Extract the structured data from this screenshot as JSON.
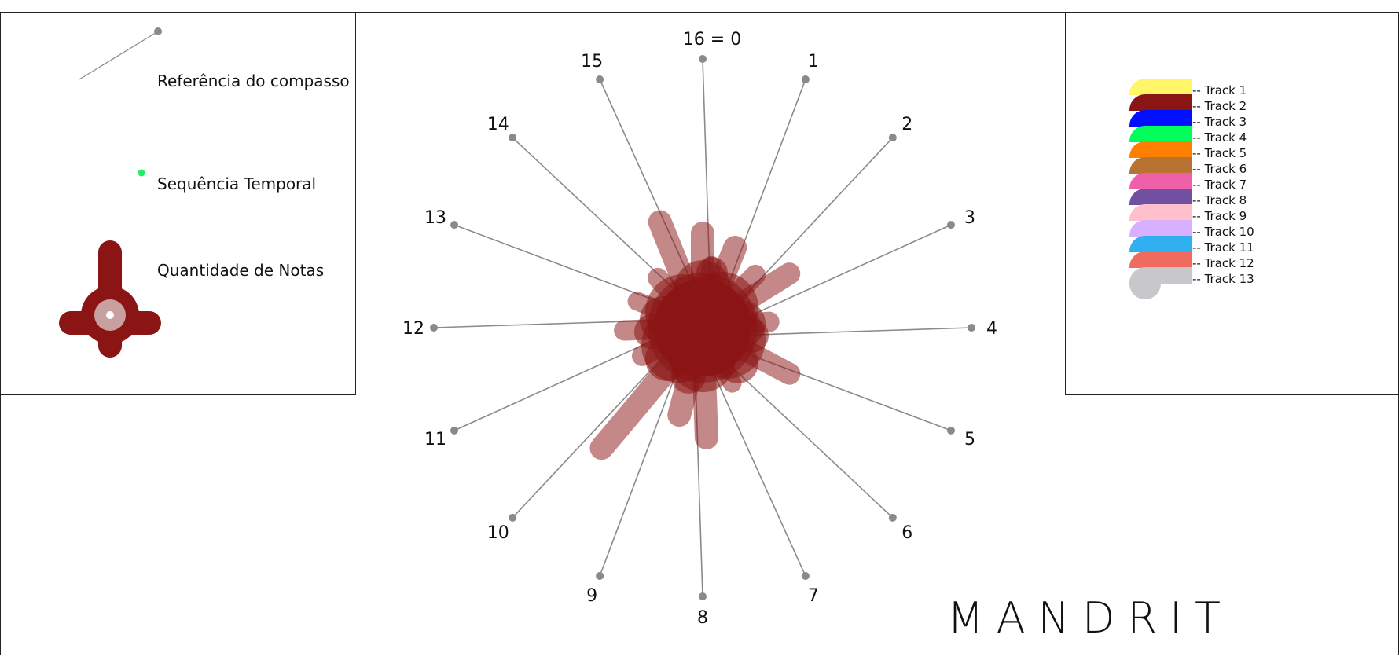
{
  "legend": {
    "compass_reference_label": "Referência do compasso",
    "temporal_sequence_label": "Sequência Temporal",
    "note_quantity_label": "Quantidade de Notas",
    "temporal_dot_color": "#22ee66",
    "reference_line_color": "#8a8a8a"
  },
  "brand": {
    "name": "MANDRIT"
  },
  "radial": {
    "beat_labels": [
      "16 = 0",
      "1",
      "2",
      "3",
      "4",
      "5",
      "6",
      "7",
      "8",
      "9",
      "10",
      "11",
      "12",
      "13",
      "14",
      "15"
    ],
    "spoke_color": "#8a8a8a",
    "note_color": "#8b1414"
  },
  "tracks": [
    {
      "label": "-- Track 1",
      "color": "#fff566"
    },
    {
      "label": "-- Track 2",
      "color": "#8b1414"
    },
    {
      "label": "-- Track 3",
      "color": "#0010ff"
    },
    {
      "label": "-- Track 4",
      "color": "#00ff5a"
    },
    {
      "label": "-- Track 5",
      "color": "#ff8000"
    },
    {
      "label": "-- Track 6",
      "color": "#b87333"
    },
    {
      "label": "-- Track 7",
      "color": "#f060a8"
    },
    {
      "label": "-- Track 8",
      "color": "#7050a0"
    },
    {
      "label": "-- Track 9",
      "color": "#ffc0cb"
    },
    {
      "label": "-- Track 10",
      "color": "#d8b0ff"
    },
    {
      "label": "-- Track 11",
      "color": "#30b0f0"
    },
    {
      "label": "-- Track 12",
      "color": "#f06a60"
    },
    {
      "label": "-- Track 13",
      "color": "#c8c8cc"
    }
  ]
}
